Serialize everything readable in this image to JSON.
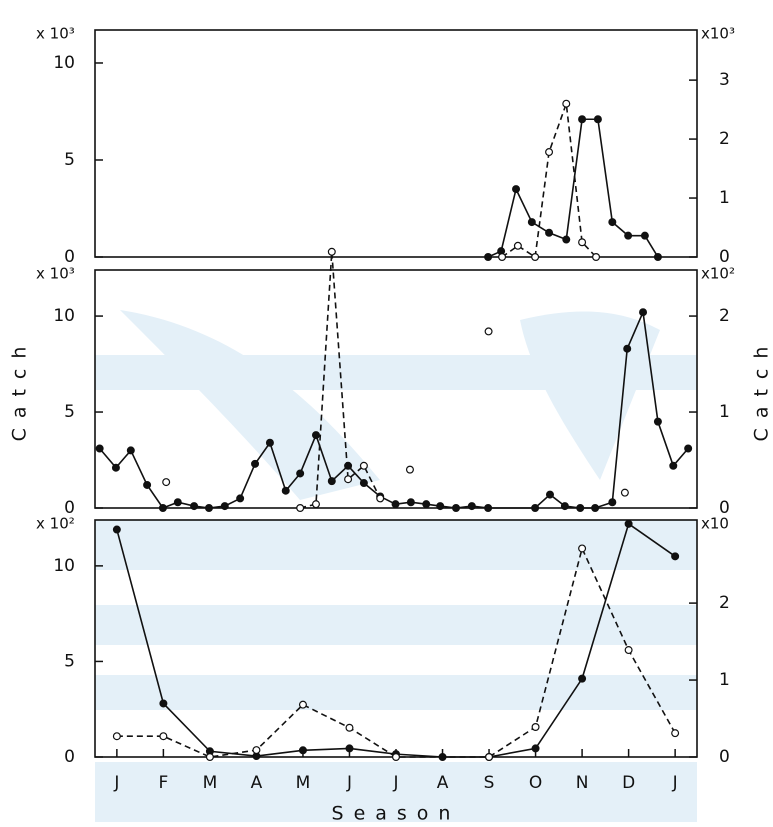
{
  "chart_data": [
    {
      "type": "line",
      "xlim": [
        -0.47,
        12.47
      ],
      "ylim": [
        0,
        11.7
      ],
      "yticks": [
        0,
        5,
        10
      ],
      "y2lim": [
        0,
        3.85
      ],
      "y2ticks": [
        0,
        1,
        2,
        3
      ],
      "y_multiplier": "x 10³",
      "y2_multiplier": "x10³",
      "series": [
        {
          "name": null,
          "color": "#111111",
          "marker": "filled",
          "dash": false,
          "axis": "y",
          "x": [
            7.98,
            8.26,
            8.58,
            8.92,
            9.29,
            9.66,
            10.0,
            10.34,
            10.65,
            10.99,
            11.35,
            11.63
          ],
          "values": [
            0,
            0.3,
            3.5,
            1.8,
            1.25,
            0.9,
            7.1,
            7.1,
            1.8,
            1.1,
            1.1,
            0
          ]
        },
        {
          "name": null,
          "color": "#111111",
          "marker": "open",
          "dash": true,
          "axis": "y2",
          "x": [
            8.28,
            8.62,
            8.99,
            9.29,
            9.66,
            10.0,
            10.3
          ],
          "values": [
            0,
            0.19,
            0,
            1.78,
            2.6,
            0.25,
            0
          ]
        }
      ]
    },
    {
      "type": "line",
      "xlim": [
        -0.47,
        12.47
      ],
      "ylim": [
        0,
        12.4
      ],
      "yticks": [
        0,
        5,
        10
      ],
      "y2lim": [
        0,
        2.48
      ],
      "y2ticks": [
        0,
        1,
        2
      ],
      "y_multiplier": "x 10³",
      "y2_multiplier": "x10²",
      "ylabel": "Catch",
      "y2label": "Catch",
      "series": [
        {
          "name": null,
          "color": "#111111",
          "marker": "filled",
          "dash": false,
          "axis": "y",
          "x": [
            -0.37,
            -0.02,
            0.3,
            0.65,
            0.99,
            1.31,
            1.66,
            1.98,
            2.32,
            2.65,
            2.97,
            3.29,
            3.63,
            3.94,
            4.28,
            4.62,
            4.97,
            5.31,
            5.66,
            5.99,
            6.32,
            6.65,
            6.95,
            7.29,
            7.63,
            7.98,
            8.99,
            9.31,
            9.63,
            9.96,
            10.28,
            10.65,
            10.97,
            11.31,
            11.63,
            11.96,
            12.28
          ],
          "values": [
            3.1,
            2.1,
            3.0,
            1.2,
            0,
            0.3,
            0.1,
            0,
            0.1,
            0.5,
            2.3,
            3.4,
            0.9,
            1.8,
            3.8,
            1.4,
            2.2,
            1.3,
            0.6,
            0.2,
            0.3,
            0.2,
            0.1,
            0,
            0.1,
            0,
            0,
            0.7,
            0.1,
            0,
            0,
            0.3,
            8.3,
            10.2,
            4.5,
            2.2,
            3.1
          ]
        },
        {
          "name": null,
          "color": "#111111",
          "marker": "open",
          "dash": true,
          "axis": "y2",
          "x": [
            1.06,
            null,
            3.94,
            4.28,
            4.62,
            4.97,
            5.31,
            5.66,
            null,
            6.3,
            null,
            7.99,
            null,
            10.92
          ],
          "values": [
            0.27,
            null,
            0,
            0.04,
            2.67,
            0.3,
            0.44,
            0.1,
            null,
            0.4,
            null,
            1.84,
            null,
            0.16
          ]
        }
      ]
    },
    {
      "type": "line",
      "xlim": [
        -0.47,
        12.47
      ],
      "ylim": [
        0,
        12.4
      ],
      "yticks": [
        0,
        5,
        10
      ],
      "y2lim": [
        0,
        3.08
      ],
      "y2ticks": [
        0,
        1,
        2
      ],
      "y_multiplier": "x 10²",
      "y2_multiplier": "x10",
      "xlabel": "Season",
      "xticks": [
        {
          "value": 0,
          "label": "J"
        },
        {
          "value": 1,
          "label": "F"
        },
        {
          "value": 2,
          "label": "M"
        },
        {
          "value": 3,
          "label": "A"
        },
        {
          "value": 4,
          "label": "M"
        },
        {
          "value": 5,
          "label": "J"
        },
        {
          "value": 6,
          "label": "J"
        },
        {
          "value": 7,
          "label": "A"
        },
        {
          "value": 8,
          "label": "S"
        },
        {
          "value": 9,
          "label": "O"
        },
        {
          "value": 10,
          "label": "N"
        },
        {
          "value": 11,
          "label": "D"
        },
        {
          "value": 12,
          "label": "J"
        }
      ],
      "series": [
        {
          "name": null,
          "color": "#111111",
          "marker": "filled",
          "dash": false,
          "axis": "y",
          "x": [
            0,
            1,
            2,
            3,
            4,
            5,
            6,
            7,
            8,
            9,
            10,
            11,
            12
          ],
          "values": [
            11.9,
            2.8,
            0.3,
            0.05,
            0.35,
            0.45,
            0.15,
            0,
            0,
            0.45,
            4.1,
            12.2,
            10.5
          ]
        },
        {
          "name": null,
          "color": "#111111",
          "marker": "open",
          "dash": true,
          "axis": "y2",
          "x": [
            0,
            1,
            2,
            3,
            4,
            5,
            6,
            8,
            9,
            10,
            11,
            12
          ],
          "values": [
            0.27,
            0.27,
            0,
            0.09,
            0.68,
            0.38,
            0,
            0,
            0.39,
            2.71,
            1.39,
            0.31
          ]
        }
      ]
    }
  ]
}
